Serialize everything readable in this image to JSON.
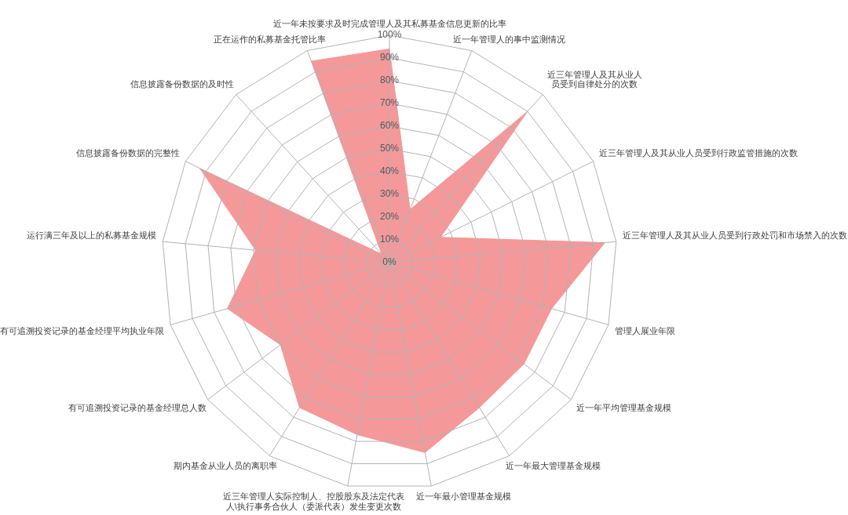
{
  "chart_data": {
    "type": "radar",
    "categories": [
      "近一年未按要求及时完成管理人及其私募基金信息更新的比率",
      "近一年管理人的事中监测情况",
      "近三年管理人及其从业人员受到自律处分的次数",
      "近三年管理人及其从业人员受到行政监管措施的次数",
      "近三年管理人及其从业人员受到行政处罚和市场禁入的次数",
      "管理人展业年限",
      "近一年平均管理基金规模",
      "近一年最大管理基金规模",
      "近一年最小管理基金规模",
      "近三年管理人实际控制人、控股股东及法定代表人\\执行事务合伙人（委派代表）发生变更次数",
      "期内基金从业人员的离职率",
      "有可追溯投资记录的基金经理总人数",
      "有可追溯投资记录的基金经理平均执业年限",
      "运行满三年及以上的私募基金规模",
      "信息披露备份数据的完整性",
      "信息披露备份数据的及时性",
      "正在运作的私募基金托管比率"
    ],
    "series": [
      {
        "color": "#f4989a",
        "values": [
          94,
          25,
          90,
          25,
          95,
          74,
          74,
          75,
          85,
          77,
          75,
          60,
          74,
          59,
          93,
          5,
          95
        ]
      }
    ],
    "ylim": [
      0,
      100
    ],
    "yticks": [
      {
        "value": 0,
        "label": "0%"
      },
      {
        "value": 10,
        "label": "10%"
      },
      {
        "value": 20,
        "label": "20%"
      },
      {
        "value": 30,
        "label": "30%"
      },
      {
        "value": 40,
        "label": "40%"
      },
      {
        "value": 50,
        "label": "50%"
      },
      {
        "value": 60,
        "label": "60%"
      },
      {
        "value": 70,
        "label": "70%"
      },
      {
        "value": 80,
        "label": "80%"
      },
      {
        "value": 90,
        "label": "90%"
      },
      {
        "value": 100,
        "label": "100%"
      }
    ],
    "grid": true
  }
}
